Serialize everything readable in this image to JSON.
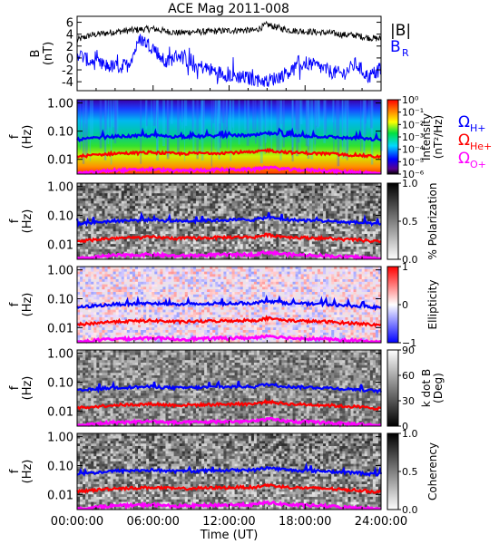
{
  "chart_data": [
    {
      "type": "line",
      "title": "ACE Mag 2011-008",
      "ylabel": "B\n(nT)",
      "ylim": [
        -5.5,
        7
      ],
      "yticks": [
        6,
        4,
        2,
        0,
        -2,
        -4
      ],
      "legend": "right",
      "colors": {
        "abs_b": "#000000",
        "b_r": "#0000ff"
      },
      "series": [
        {
          "name": "|B|",
          "color": "#000000",
          "x": [
            0,
            1,
            2,
            3,
            4,
            5,
            6,
            7,
            8,
            9,
            10,
            11,
            12,
            13,
            14,
            15,
            16,
            17,
            18,
            19,
            20,
            21,
            22,
            23,
            24
          ],
          "values": [
            3.0,
            3.8,
            4.1,
            4.4,
            4.6,
            4.8,
            4.9,
            4.5,
            4.2,
            4.4,
            4.4,
            4.5,
            4.6,
            4.7,
            4.6,
            5.6,
            5.0,
            4.6,
            4.5,
            4.3,
            4.2,
            3.9,
            3.8,
            3.4,
            3.2
          ]
        },
        {
          "name": "B",
          "subscript": "R",
          "color": "#0000ff",
          "x": [
            0,
            1,
            2,
            3,
            4,
            5,
            6,
            7,
            8,
            9,
            10,
            11,
            12,
            13,
            14,
            15,
            16,
            17,
            18,
            19,
            20,
            21,
            22,
            23,
            24
          ],
          "values": [
            0.8,
            -0.6,
            -1.2,
            -1.5,
            -1.2,
            3.2,
            1.8,
            -0.9,
            0.6,
            -1.0,
            -1.6,
            -2.3,
            -2.9,
            -3.2,
            -3.6,
            -3.9,
            -3.1,
            -2.0,
            -0.8,
            -1.4,
            -2.3,
            -2.7,
            -1.0,
            -3.2,
            -1.8
          ]
        }
      ]
    },
    {
      "type": "heatmap",
      "ylabel": "f\n(Hz)",
      "yscale": "log",
      "ylim": [
        0.003,
        1.3
      ],
      "yticks": [
        "1.00",
        "0.10",
        "0.01"
      ],
      "colorbar": {
        "label": "Intensity\n(nT²/Hz)",
        "scale": "log",
        "range": [
          1e-06,
          1
        ],
        "ticks": [
          "10⁰",
          "10⁻¹",
          "10⁻²",
          "10⁻³",
          "10⁻⁴",
          "10⁻⁵",
          "10⁻⁶"
        ],
        "colormap": "rainbow"
      },
      "legend": "right",
      "overlays": [
        {
          "name": "Ω",
          "subscript": "H+",
          "color": "#0000ff"
        },
        {
          "name": "Ω",
          "subscript": "He+",
          "color": "#ff0000"
        },
        {
          "name": "Ω",
          "subscript": "O+",
          "color": "#ff00ff"
        }
      ]
    },
    {
      "type": "heatmap",
      "ylabel": "f\n(Hz)",
      "yscale": "log",
      "yticks": [
        "1.00",
        "0.10",
        "0.01"
      ],
      "colorbar": {
        "label": "% Polarization",
        "range": [
          0,
          1
        ],
        "ticks": [
          "1.0",
          "0.5",
          "0.0"
        ],
        "colormap": "gray"
      }
    },
    {
      "type": "heatmap",
      "ylabel": "f\n(Hz)",
      "yscale": "log",
      "yticks": [
        "1.00",
        "0.10",
        "0.01"
      ],
      "colorbar": {
        "label": "Ellipticity",
        "range": [
          -1,
          1
        ],
        "ticks": [
          "1",
          "0",
          "−1"
        ],
        "colormap": "blue-white-red"
      }
    },
    {
      "type": "heatmap",
      "ylabel": "f\n(Hz)",
      "yscale": "log",
      "yticks": [
        "1.00",
        "0.10",
        "0.01"
      ],
      "colorbar": {
        "label": "k dot B\n(Deg)",
        "range": [
          0,
          90
        ],
        "ticks": [
          "90",
          "60",
          "30",
          "0"
        ],
        "colormap": "gray-reversed"
      }
    },
    {
      "type": "heatmap",
      "ylabel": "f\n(Hz)",
      "yscale": "log",
      "yticks": [
        "1.00",
        "0.10",
        "0.01"
      ],
      "colorbar": {
        "label": "Coherency",
        "range": [
          0,
          1
        ],
        "ticks": [
          "1.0",
          "0.5",
          "0.0"
        ],
        "colormap": "gray"
      },
      "xlabel": "Time (UT)",
      "xticks": [
        "00:00:00",
        "06:00:00",
        "12:00:00",
        "18:00:00",
        "24:00:00"
      ]
    }
  ],
  "cyclotron_frequencies": {
    "x": [
      0,
      1,
      2,
      3,
      4,
      5,
      6,
      7,
      8,
      9,
      10,
      11,
      12,
      13,
      14,
      15,
      16,
      17,
      18,
      19,
      20,
      21,
      22,
      23,
      24
    ],
    "h_plus_hz": [
      0.05,
      0.055,
      0.06,
      0.065,
      0.066,
      0.068,
      0.07,
      0.066,
      0.063,
      0.065,
      0.066,
      0.068,
      0.069,
      0.071,
      0.07,
      0.085,
      0.075,
      0.069,
      0.067,
      0.065,
      0.063,
      0.058,
      0.057,
      0.052,
      0.049
    ],
    "he_plus_hz": [
      0.0125,
      0.0138,
      0.015,
      0.0163,
      0.0165,
      0.017,
      0.0175,
      0.0165,
      0.0158,
      0.0163,
      0.0165,
      0.017,
      0.0173,
      0.0178,
      0.0175,
      0.0213,
      0.0188,
      0.0173,
      0.0168,
      0.0163,
      0.0158,
      0.0145,
      0.0143,
      0.013,
      0.0123
    ],
    "o_plus_hz": [
      0.0031,
      0.0034,
      0.0038,
      0.0041,
      0.0041,
      0.0043,
      0.0044,
      0.0041,
      0.0039,
      0.0041,
      0.0041,
      0.0043,
      0.0043,
      0.0044,
      0.0044,
      0.0053,
      0.0047,
      0.0043,
      0.0042,
      0.0041,
      0.0039,
      0.0036,
      0.0036,
      0.0033,
      0.0031
    ]
  }
}
